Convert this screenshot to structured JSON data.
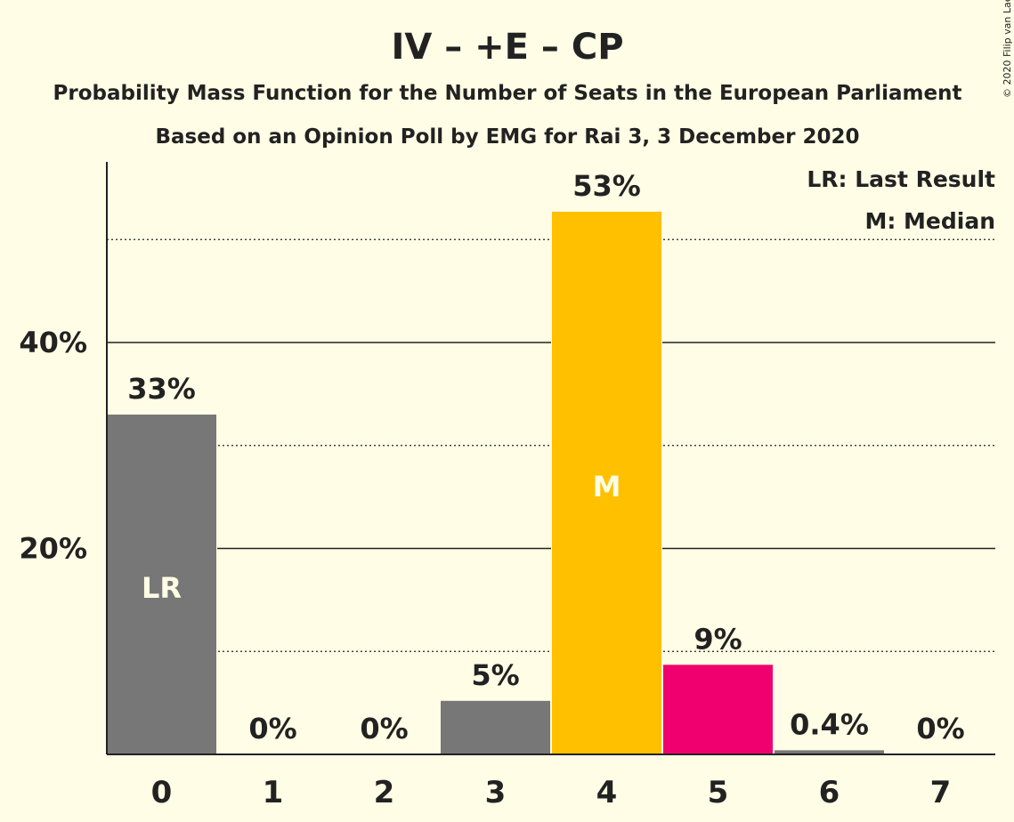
{
  "chart_data": {
    "type": "bar",
    "title": "IV – +E – CP",
    "subtitle": "Probability Mass Function for the Number of Seats in the European Parliament",
    "subtitle2": "Based on an Opinion Poll by EMG for Rai 3, 3 December 2020",
    "copyright": "© 2020 Filip van Laenen",
    "legend": [
      "LR: Last Result",
      "M: Median"
    ],
    "legend_placement": "top-right",
    "categories": [
      "0",
      "1",
      "2",
      "3",
      "4",
      "5",
      "6",
      "7"
    ],
    "values": [
      33,
      0,
      0,
      5.2,
      52.7,
      8.7,
      0.4,
      0
    ],
    "value_labels": [
      "33%",
      "0%",
      "0%",
      "5%",
      "53%",
      "9%",
      "0.4%",
      "0%"
    ],
    "bar_colors": [
      "#777777",
      "#777777",
      "#777777",
      "#777777",
      "#FFC000",
      "#F0006E",
      "#777777",
      "#777777"
    ],
    "bar_markers": {
      "0": "LR",
      "4": "M"
    },
    "ylim": [
      0,
      57.5
    ],
    "yticks": [
      20,
      40
    ],
    "ytick_labels": [
      "20%",
      "40%"
    ],
    "minor_gridlines": [
      10,
      30,
      50
    ],
    "xlabel": "",
    "ylabel": ""
  }
}
